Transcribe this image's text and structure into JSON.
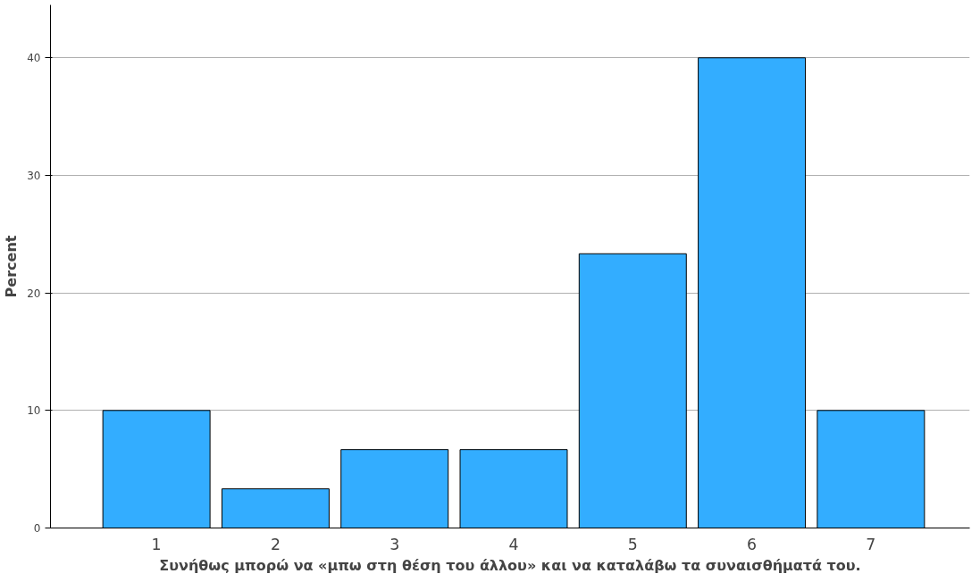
{
  "chart_data": {
    "type": "bar",
    "xlabel": "Συνήθως μπορώ να «μπω στη θέση του άλλου» και να καταλάβω τα συναισθήματά του.",
    "ylabel": "Percent",
    "categories": [
      "1",
      "2",
      "3",
      "4",
      "5",
      "6",
      "7"
    ],
    "values": [
      10,
      3.33,
      6.67,
      6.67,
      23.33,
      40,
      10
    ],
    "color": "#33adff",
    "ylim": [
      0,
      44.5
    ],
    "yticks": [
      0,
      10,
      20,
      30,
      40
    ],
    "grid": "y"
  }
}
